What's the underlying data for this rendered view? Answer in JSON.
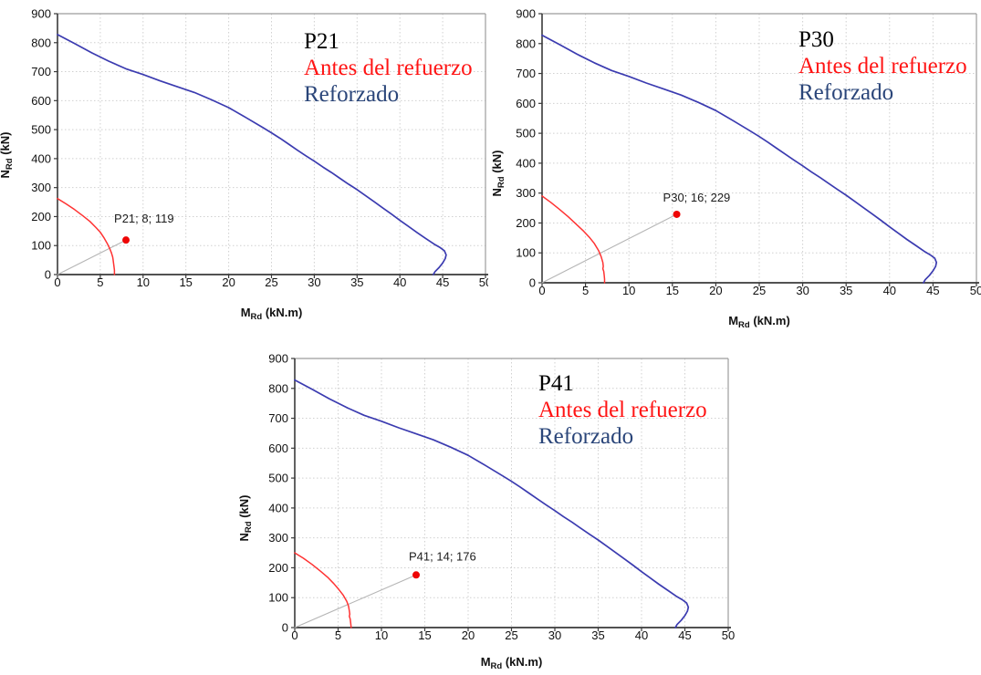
{
  "figure": {
    "background": "#FFFFFF"
  },
  "colors": {
    "grid": "#D0D0D0",
    "frame": "#9C9C9C",
    "axis": "#3A3A3A",
    "tick_label": "#111111",
    "legend_before": "#FF1414",
    "legend_reinforced": "#2A4579",
    "curve_before": "#FF3232",
    "curve_reinforced": "#3B3BB0",
    "demand_line": "#B5B5B5",
    "point": "#EE0505"
  },
  "chart_data": [
    {
      "type": "line",
      "title": "P21",
      "legend": [
        {
          "label": "Antes del refuerzo",
          "color_key": "legend_before"
        },
        {
          "label": "Reforzado",
          "color_key": "legend_reinforced"
        }
      ],
      "xlabel": {
        "base": "M",
        "sub": "Rd",
        "unit": " (kN.m)"
      },
      "ylabel": {
        "base": "N",
        "sub": "Rd",
        "unit": " (kN)"
      },
      "xlim": [
        0,
        50
      ],
      "ylim": [
        0,
        900
      ],
      "xticks": [
        0,
        5,
        10,
        15,
        20,
        25,
        30,
        35,
        40,
        45,
        50
      ],
      "yticks": [
        0,
        100,
        200,
        300,
        400,
        500,
        600,
        700,
        800,
        900
      ],
      "grid": true,
      "legend_position": "top-right-inside",
      "series": [
        {
          "name": "linea-demanda",
          "color_key": "demand_line",
          "points": [
            [
              0,
              0
            ],
            [
              8,
              119
            ]
          ]
        },
        {
          "name": "Antes del refuerzo",
          "color_key": "curve_before",
          "points": [
            [
              0,
              262
            ],
            [
              1,
              244
            ],
            [
              2,
              224
            ],
            [
              3,
              202
            ],
            [
              3.8,
              183
            ],
            [
              4.5,
              162
            ],
            [
              5,
              146
            ],
            [
              5.4,
              128
            ],
            [
              5.8,
              108
            ],
            [
              6.1,
              90
            ],
            [
              6.3,
              75
            ],
            [
              6.45,
              60
            ],
            [
              6.5,
              50
            ],
            [
              6.55,
              40
            ],
            [
              6.6,
              28
            ],
            [
              6.65,
              15
            ],
            [
              6.65,
              0
            ]
          ]
        },
        {
          "name": "Reforzado",
          "color_key": "curve_reinforced",
          "points": [
            [
              0,
              828
            ],
            [
              2,
              797
            ],
            [
              4,
              765
            ],
            [
              6,
              736
            ],
            [
              8,
              710
            ],
            [
              10,
              690
            ],
            [
              12,
              668
            ],
            [
              14,
              648
            ],
            [
              16,
              628
            ],
            [
              18,
              603
            ],
            [
              20,
              576
            ],
            [
              22,
              542
            ],
            [
              24,
              507
            ],
            [
              25,
              489
            ],
            [
              26,
              470
            ],
            [
              27,
              450
            ],
            [
              28,
              430
            ],
            [
              29,
              410
            ],
            [
              30,
              391
            ],
            [
              31,
              371
            ],
            [
              32,
              352
            ],
            [
              33,
              332
            ],
            [
              34,
              312
            ],
            [
              35,
              293
            ],
            [
              36,
              272
            ],
            [
              37,
              251
            ],
            [
              38,
              230
            ],
            [
              39,
              209
            ],
            [
              40,
              187
            ],
            [
              41,
              166
            ],
            [
              42,
              145
            ],
            [
              43,
              125
            ],
            [
              44,
              105
            ],
            [
              44.7,
              93
            ],
            [
              45.2,
              82
            ],
            [
              45.4,
              68
            ],
            [
              45.3,
              55
            ],
            [
              45,
              40
            ],
            [
              44.6,
              25
            ],
            [
              44.1,
              10
            ],
            [
              43.9,
              0
            ]
          ]
        }
      ],
      "marker": {
        "x": 8,
        "y": 119,
        "label": "P21; 8; 119"
      }
    },
    {
      "type": "line",
      "title": "P30",
      "legend": [
        {
          "label": "Antes del refuerzo",
          "color_key": "legend_before"
        },
        {
          "label": "Reforzado",
          "color_key": "legend_reinforced"
        }
      ],
      "xlabel": {
        "base": "M",
        "sub": "Rd",
        "unit": " (kN.m)"
      },
      "ylabel": {
        "base": "N",
        "sub": "Rd",
        "unit": " (kN)"
      },
      "xlim": [
        0,
        50
      ],
      "ylim": [
        0,
        900
      ],
      "xticks": [
        0,
        5,
        10,
        15,
        20,
        25,
        30,
        35,
        40,
        45,
        50
      ],
      "yticks": [
        0,
        100,
        200,
        300,
        400,
        500,
        600,
        700,
        800,
        900
      ],
      "grid": true,
      "legend_position": "top-right-inside",
      "series": [
        {
          "name": "linea-demanda",
          "color_key": "demand_line",
          "points": [
            [
              0,
              0
            ],
            [
              15.5,
              229
            ]
          ]
        },
        {
          "name": "Antes del refuerzo",
          "color_key": "curve_before",
          "points": [
            [
              0,
              290
            ],
            [
              1,
              269
            ],
            [
              2,
              246
            ],
            [
              3,
              221
            ],
            [
              4,
              194
            ],
            [
              4.8,
              172
            ],
            [
              5.5,
              150
            ],
            [
              6,
              132
            ],
            [
              6.5,
              108
            ],
            [
              6.8,
              88
            ],
            [
              7,
              68
            ],
            [
              7.05,
              55
            ],
            [
              7,
              47
            ],
            [
              7.1,
              38
            ],
            [
              7.15,
              25
            ],
            [
              7.2,
              12
            ],
            [
              7.2,
              0
            ]
          ]
        },
        {
          "name": "Reforzado",
          "color_key": "curve_reinforced",
          "points": [
            [
              0,
              828
            ],
            [
              2,
              797
            ],
            [
              4,
              765
            ],
            [
              6,
              736
            ],
            [
              8,
              710
            ],
            [
              10,
              690
            ],
            [
              12,
              668
            ],
            [
              14,
              648
            ],
            [
              16,
              628
            ],
            [
              18,
              603
            ],
            [
              20,
              576
            ],
            [
              22,
              542
            ],
            [
              24,
              507
            ],
            [
              25,
              489
            ],
            [
              26,
              470
            ],
            [
              27,
              450
            ],
            [
              28,
              430
            ],
            [
              29,
              410
            ],
            [
              30,
              391
            ],
            [
              31,
              371
            ],
            [
              32,
              352
            ],
            [
              33,
              332
            ],
            [
              34,
              312
            ],
            [
              35,
              293
            ],
            [
              36,
              272
            ],
            [
              37,
              251
            ],
            [
              38,
              230
            ],
            [
              39,
              209
            ],
            [
              40,
              187
            ],
            [
              41,
              166
            ],
            [
              42,
              145
            ],
            [
              43,
              125
            ],
            [
              44,
              105
            ],
            [
              44.7,
              93
            ],
            [
              45.2,
              82
            ],
            [
              45.4,
              68
            ],
            [
              45.3,
              55
            ],
            [
              45,
              40
            ],
            [
              44.6,
              25
            ],
            [
              44.1,
              10
            ],
            [
              43.9,
              0
            ]
          ]
        }
      ],
      "marker": {
        "x": 15.5,
        "y": 229,
        "label": "P30; 16; 229"
      }
    },
    {
      "type": "line",
      "title": "P41",
      "legend": [
        {
          "label": "Antes del refuerzo",
          "color_key": "legend_before"
        },
        {
          "label": "Reforzado",
          "color_key": "legend_reinforced"
        }
      ],
      "xlabel": {
        "base": "M",
        "sub": "Rd",
        "unit": " (kN.m)"
      },
      "ylabel": {
        "base": "N",
        "sub": "Rd",
        "unit": " (kN)"
      },
      "xlim": [
        0,
        50
      ],
      "ylim": [
        0,
        900
      ],
      "xticks": [
        0,
        5,
        10,
        15,
        20,
        25,
        30,
        35,
        40,
        45,
        50
      ],
      "yticks": [
        0,
        100,
        200,
        300,
        400,
        500,
        600,
        700,
        800,
        900
      ],
      "grid": true,
      "legend_position": "top-right-inside",
      "series": [
        {
          "name": "linea-demanda",
          "color_key": "demand_line",
          "points": [
            [
              0,
              0
            ],
            [
              14,
              176
            ]
          ]
        },
        {
          "name": "Antes del refuerzo",
          "color_key": "curve_before",
          "points": [
            [
              0,
              250
            ],
            [
              1,
              232
            ],
            [
              2,
              211
            ],
            [
              3,
              188
            ],
            [
              3.8,
              168
            ],
            [
              4.5,
              147
            ],
            [
              5.1,
              127
            ],
            [
              5.6,
              108
            ],
            [
              6,
              88
            ],
            [
              6.2,
              72
            ],
            [
              6.3,
              56
            ],
            [
              6.35,
              45
            ],
            [
              6.3,
              38
            ],
            [
              6.4,
              28
            ],
            [
              6.45,
              15
            ],
            [
              6.5,
              0
            ]
          ]
        },
        {
          "name": "Reforzado",
          "color_key": "curve_reinforced",
          "points": [
            [
              0,
              828
            ],
            [
              2,
              797
            ],
            [
              4,
              765
            ],
            [
              6,
              736
            ],
            [
              8,
              710
            ],
            [
              10,
              690
            ],
            [
              12,
              668
            ],
            [
              14,
              648
            ],
            [
              16,
              628
            ],
            [
              18,
              603
            ],
            [
              20,
              576
            ],
            [
              22,
              542
            ],
            [
              24,
              507
            ],
            [
              25,
              489
            ],
            [
              26,
              470
            ],
            [
              27,
              450
            ],
            [
              28,
              430
            ],
            [
              29,
              410
            ],
            [
              30,
              391
            ],
            [
              31,
              371
            ],
            [
              32,
              352
            ],
            [
              33,
              332
            ],
            [
              34,
              312
            ],
            [
              35,
              293
            ],
            [
              36,
              272
            ],
            [
              37,
              251
            ],
            [
              38,
              230
            ],
            [
              39,
              209
            ],
            [
              40,
              187
            ],
            [
              41,
              166
            ],
            [
              42,
              145
            ],
            [
              43,
              125
            ],
            [
              44,
              105
            ],
            [
              44.7,
              93
            ],
            [
              45.2,
              82
            ],
            [
              45.4,
              68
            ],
            [
              45.3,
              55
            ],
            [
              45,
              40
            ],
            [
              44.6,
              25
            ],
            [
              44.1,
              10
            ],
            [
              43.9,
              0
            ]
          ]
        }
      ],
      "marker": {
        "x": 14,
        "y": 176,
        "label": "P41; 14; 176"
      }
    }
  ]
}
